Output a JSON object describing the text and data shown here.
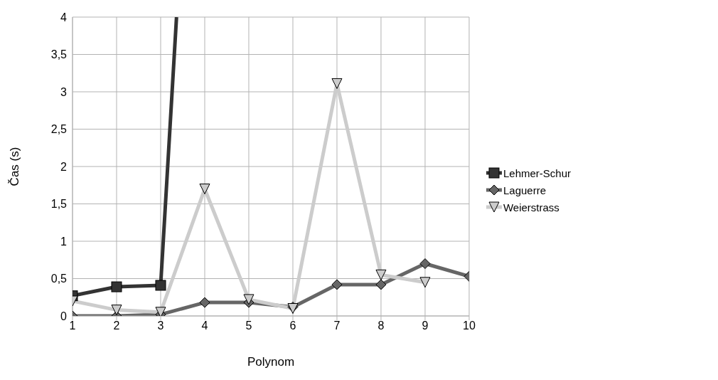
{
  "chart_data": {
    "type": "line",
    "xlabel": "Polynom",
    "ylabel": "Čas (s)",
    "x": [
      1,
      2,
      3,
      4,
      5,
      6,
      7,
      8,
      9,
      10
    ],
    "series": [
      {
        "name": "Lehmer-Schur",
        "color": "#333333",
        "marker": "square",
        "x": [
          1,
          2,
          3,
          3.36
        ],
        "values": [
          0.27,
          0.39,
          0.41,
          4
        ]
      },
      {
        "name": "Laguerre",
        "color": "#666666",
        "marker": "diamond",
        "values": [
          0,
          0,
          0.02,
          0.18,
          0.18,
          0.12,
          0.42,
          0.42,
          0.7,
          0.53
        ]
      },
      {
        "name": "Weierstrass",
        "color": "#cccccc",
        "marker": "triangle",
        "values": [
          0.2,
          0.08,
          0.05,
          1.7,
          0.22,
          0.1,
          3.11,
          0.55,
          0.45,
          null
        ]
      }
    ],
    "xlim": [
      1,
      10
    ],
    "xticks": [
      1,
      2,
      3,
      4,
      5,
      6,
      7,
      8,
      9,
      10
    ],
    "ylim": [
      0,
      4
    ],
    "yticks": [
      0,
      {
        "value": 0.5,
        "label": "0,5"
      },
      1,
      {
        "value": 1.5,
        "label": "1,5"
      },
      2,
      {
        "value": 2.5,
        "label": "2,5"
      },
      3,
      {
        "value": 3.5,
        "label": "3,5"
      },
      4
    ],
    "grid": true,
    "legend": "right",
    "line_style": "solid"
  }
}
